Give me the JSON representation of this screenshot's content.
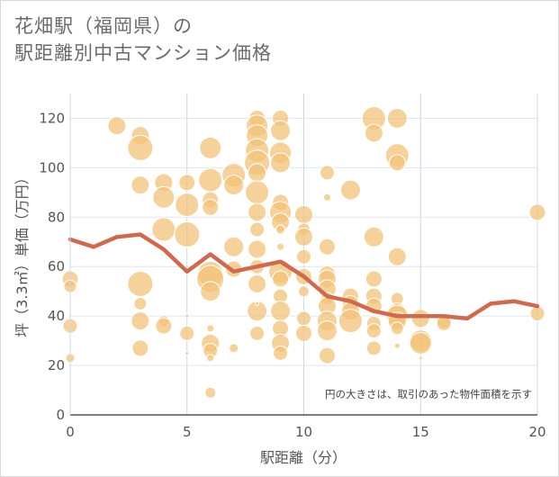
{
  "title_line1": "花畑駅（福岡県）の",
  "title_line2": "駅距離別中古マンション価格",
  "chart_data": {
    "type": "scatter",
    "xlabel": "駅距離（分）",
    "ylabel": "坪（3.3㎡）単価（万円）",
    "xlim": [
      0,
      20
    ],
    "ylim": [
      0,
      130
    ],
    "xticks": [
      "0",
      "5",
      "10",
      "15",
      "20"
    ],
    "yticks": [
      "0",
      "20",
      "40",
      "60",
      "80",
      "100",
      "120"
    ],
    "grid": true,
    "note": "円の大きさは、取引のあった物件面積を示す",
    "bubble_color": "#f2c27a",
    "line_color": "#cd6a50",
    "average_line": {
      "x": [
        0,
        1,
        2,
        3,
        4,
        5,
        6,
        7,
        8,
        9,
        10,
        11,
        12,
        13,
        14,
        15,
        16,
        17,
        18,
        19,
        20
      ],
      "y": [
        71,
        68,
        72,
        73,
        67,
        58,
        65,
        58,
        60,
        62,
        56,
        48,
        46,
        42,
        40,
        40,
        40,
        39,
        45,
        46,
        44
      ]
    },
    "points": [
      {
        "x": 0,
        "y": 55,
        "r": 9
      },
      {
        "x": 0,
        "y": 52,
        "r": 7
      },
      {
        "x": 0,
        "y": 36,
        "r": 8
      },
      {
        "x": 0,
        "y": 23,
        "r": 5
      },
      {
        "x": 2,
        "y": 117,
        "r": 10
      },
      {
        "x": 3,
        "y": 113,
        "r": 10
      },
      {
        "x": 3,
        "y": 108,
        "r": 14
      },
      {
        "x": 3,
        "y": 93,
        "r": 10
      },
      {
        "x": 3,
        "y": 53,
        "r": 14
      },
      {
        "x": 3,
        "y": 45,
        "r": 7
      },
      {
        "x": 3,
        "y": 38,
        "r": 10
      },
      {
        "x": 3,
        "y": 27,
        "r": 9
      },
      {
        "x": 4,
        "y": 94,
        "r": 10
      },
      {
        "x": 4,
        "y": 88,
        "r": 12
      },
      {
        "x": 4,
        "y": 75,
        "r": 13
      },
      {
        "x": 4,
        "y": 38,
        "r": 6
      },
      {
        "x": 4,
        "y": 36,
        "r": 9
      },
      {
        "x": 5,
        "y": 94,
        "r": 9
      },
      {
        "x": 5,
        "y": 85,
        "r": 13
      },
      {
        "x": 5,
        "y": 73,
        "r": 14
      },
      {
        "x": 5,
        "y": 40,
        "r": 2
      },
      {
        "x": 5,
        "y": 33,
        "r": 8
      },
      {
        "x": 5,
        "y": 25,
        "r": 2
      },
      {
        "x": 6,
        "y": 108,
        "r": 12
      },
      {
        "x": 6,
        "y": 95,
        "r": 13
      },
      {
        "x": 6,
        "y": 87,
        "r": 9
      },
      {
        "x": 6,
        "y": 84,
        "r": 9
      },
      {
        "x": 6,
        "y": 57,
        "r": 14
      },
      {
        "x": 6,
        "y": 55,
        "r": 15
      },
      {
        "x": 6,
        "y": 50,
        "r": 11
      },
      {
        "x": 6,
        "y": 35,
        "r": 4
      },
      {
        "x": 6,
        "y": 29,
        "r": 10
      },
      {
        "x": 6,
        "y": 26,
        "r": 8
      },
      {
        "x": 6,
        "y": 23,
        "r": 4
      },
      {
        "x": 6,
        "y": 9,
        "r": 6
      },
      {
        "x": 7,
        "y": 97,
        "r": 13
      },
      {
        "x": 7,
        "y": 93,
        "r": 11
      },
      {
        "x": 7,
        "y": 68,
        "r": 11
      },
      {
        "x": 7,
        "y": 59,
        "r": 9
      },
      {
        "x": 7,
        "y": 27,
        "r": 5
      },
      {
        "x": 8,
        "y": 120,
        "r": 9
      },
      {
        "x": 8,
        "y": 117,
        "r": 12
      },
      {
        "x": 8,
        "y": 113,
        "r": 12
      },
      {
        "x": 8,
        "y": 107,
        "r": 13
      },
      {
        "x": 8,
        "y": 102,
        "r": 14
      },
      {
        "x": 8,
        "y": 98,
        "r": 10
      },
      {
        "x": 8,
        "y": 90,
        "r": 13
      },
      {
        "x": 8,
        "y": 82,
        "r": 10
      },
      {
        "x": 8,
        "y": 75,
        "r": 8
      },
      {
        "x": 8,
        "y": 67,
        "r": 10
      },
      {
        "x": 8,
        "y": 60,
        "r": 8
      },
      {
        "x": 8,
        "y": 53,
        "r": 10
      },
      {
        "x": 8,
        "y": 42,
        "r": 11
      },
      {
        "x": 8,
        "y": 33,
        "r": 8
      },
      {
        "x": 8,
        "y": 45,
        "r": 2
      },
      {
        "x": 9,
        "y": 120,
        "r": 9
      },
      {
        "x": 9,
        "y": 115,
        "r": 11
      },
      {
        "x": 9,
        "y": 106,
        "r": 12
      },
      {
        "x": 9,
        "y": 102,
        "r": 11
      },
      {
        "x": 9,
        "y": 86,
        "r": 9
      },
      {
        "x": 9,
        "y": 82,
        "r": 12
      },
      {
        "x": 9,
        "y": 78,
        "r": 10
      },
      {
        "x": 9,
        "y": 75,
        "r": 5
      },
      {
        "x": 9,
        "y": 68,
        "r": 4
      },
      {
        "x": 9,
        "y": 58,
        "r": 13
      },
      {
        "x": 9,
        "y": 55,
        "r": 9
      },
      {
        "x": 9,
        "y": 48,
        "r": 8
      },
      {
        "x": 9,
        "y": 42,
        "r": 11
      },
      {
        "x": 9,
        "y": 35,
        "r": 9
      },
      {
        "x": 9,
        "y": 29,
        "r": 10
      },
      {
        "x": 9,
        "y": 25,
        "r": 8
      },
      {
        "x": 10,
        "y": 81,
        "r": 10
      },
      {
        "x": 10,
        "y": 75,
        "r": 7
      },
      {
        "x": 10,
        "y": 72,
        "r": 10
      },
      {
        "x": 10,
        "y": 64,
        "r": 8
      },
      {
        "x": 10,
        "y": 56,
        "r": 9
      },
      {
        "x": 10,
        "y": 50,
        "r": 6
      },
      {
        "x": 10,
        "y": 39,
        "r": 8
      },
      {
        "x": 10,
        "y": 33,
        "r": 9
      },
      {
        "x": 11,
        "y": 98,
        "r": 8
      },
      {
        "x": 11,
        "y": 88,
        "r": 4
      },
      {
        "x": 11,
        "y": 68,
        "r": 9
      },
      {
        "x": 11,
        "y": 57,
        "r": 9
      },
      {
        "x": 11,
        "y": 55,
        "r": 10
      },
      {
        "x": 11,
        "y": 51,
        "r": 10
      },
      {
        "x": 11,
        "y": 47,
        "r": 7
      },
      {
        "x": 11,
        "y": 44,
        "r": 10
      },
      {
        "x": 11,
        "y": 38,
        "r": 11
      },
      {
        "x": 11,
        "y": 34,
        "r": 11
      },
      {
        "x": 11,
        "y": 24,
        "r": 9
      },
      {
        "x": 12,
        "y": 91,
        "r": 11
      },
      {
        "x": 12,
        "y": 48,
        "r": 9
      },
      {
        "x": 12,
        "y": 45,
        "r": 9
      },
      {
        "x": 12,
        "y": 42,
        "r": 10
      },
      {
        "x": 12,
        "y": 38,
        "r": 13
      },
      {
        "x": 13,
        "y": 120,
        "r": 13
      },
      {
        "x": 13,
        "y": 114,
        "r": 10
      },
      {
        "x": 13,
        "y": 72,
        "r": 11
      },
      {
        "x": 13,
        "y": 55,
        "r": 9
      },
      {
        "x": 13,
        "y": 48,
        "r": 9
      },
      {
        "x": 13,
        "y": 44,
        "r": 9
      },
      {
        "x": 13,
        "y": 37,
        "r": 8
      },
      {
        "x": 13,
        "y": 34,
        "r": 8
      },
      {
        "x": 13,
        "y": 27,
        "r": 8
      },
      {
        "x": 14,
        "y": 120,
        "r": 11
      },
      {
        "x": 14,
        "y": 105,
        "r": 13
      },
      {
        "x": 14,
        "y": 102,
        "r": 9
      },
      {
        "x": 14,
        "y": 64,
        "r": 10
      },
      {
        "x": 14,
        "y": 47,
        "r": 7
      },
      {
        "x": 14,
        "y": 42,
        "r": 9
      },
      {
        "x": 14,
        "y": 40,
        "r": 12
      },
      {
        "x": 14,
        "y": 38,
        "r": 10
      },
      {
        "x": 14,
        "y": 35,
        "r": 7
      },
      {
        "x": 14,
        "y": 28,
        "r": 3
      },
      {
        "x": 15,
        "y": 39,
        "r": 10
      },
      {
        "x": 15,
        "y": 30,
        "r": 12
      },
      {
        "x": 15,
        "y": 29,
        "r": 12
      },
      {
        "x": 15,
        "y": 23,
        "r": 2
      },
      {
        "x": 16,
        "y": 38,
        "r": 8
      },
      {
        "x": 16,
        "y": 37,
        "r": 8
      },
      {
        "x": 20,
        "y": 82,
        "r": 9
      },
      {
        "x": 20,
        "y": 41,
        "r": 8
      }
    ]
  }
}
